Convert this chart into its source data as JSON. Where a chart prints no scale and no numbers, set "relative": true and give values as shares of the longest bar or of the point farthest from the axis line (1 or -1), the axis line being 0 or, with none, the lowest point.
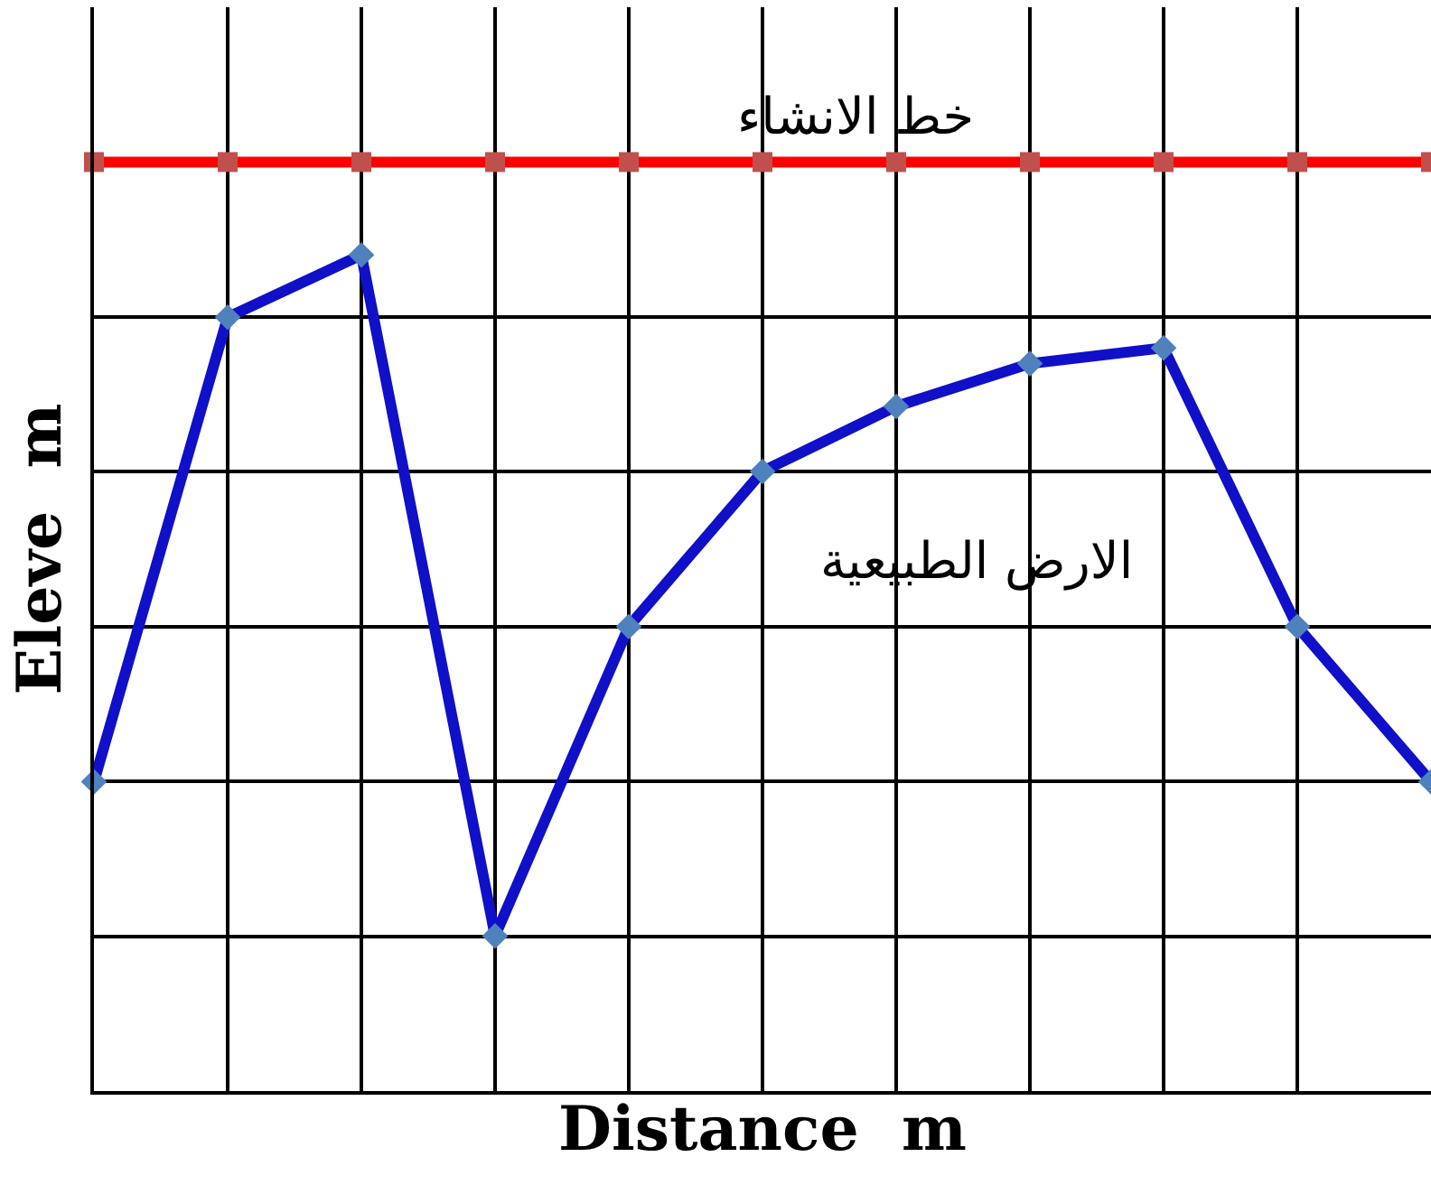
{
  "chart_data": {
    "type": "line",
    "relative": true,
    "xlabel": "Distance  m",
    "ylabel": "Eleve  m",
    "categories": [
      null,
      null,
      null,
      null,
      null,
      null,
      null,
      null,
      null,
      null,
      null
    ],
    "series": [
      {
        "color": "#ff0000",
        "marker": "square",
        "values": [
          1,
          1,
          1,
          1,
          1,
          1,
          1,
          1,
          1,
          1,
          1
        ]
      },
      {
        "color": "#1010c8",
        "marker": "diamond",
        "values": [
          0.333,
          0.833,
          0.9,
          0.167,
          0.5,
          0.667,
          0.737,
          0.783,
          0.8,
          0.5,
          0.333
        ]
      }
    ],
    "annotations": [
      "خط الانشاء",
      "الارض الطبيعية"
    ],
    "grid": true,
    "tick_labels": false,
    "line_style": "solid"
  }
}
